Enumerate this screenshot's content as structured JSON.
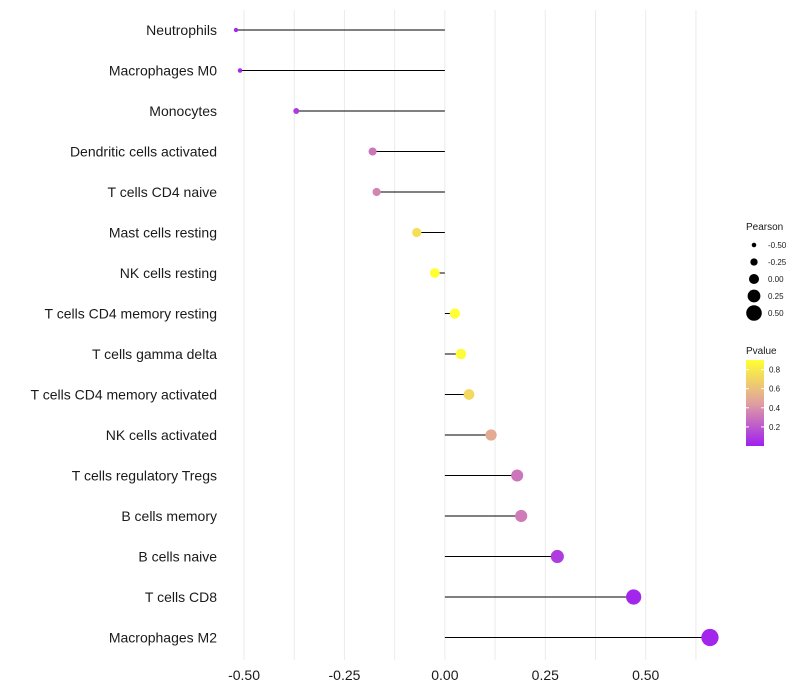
{
  "chart_data": {
    "type": "lollipop",
    "xlim": [
      -0.53,
      0.68
    ],
    "x_ticks": [
      -0.5,
      -0.25,
      0.0,
      0.25,
      0.5
    ],
    "x_tick_labels": [
      "-0.50",
      "-0.25",
      "0.00",
      "0.25",
      "0.50"
    ],
    "baseline": 0.0,
    "grid": true,
    "categories": [
      "Neutrophils",
      "Macrophages M0",
      "Monocytes",
      "Dendritic cells activated",
      "T cells CD4 naive",
      "Mast cells resting",
      "NK cells resting",
      "T cells CD4 memory resting",
      "T cells gamma delta",
      "T cells CD4 memory activated",
      "NK cells activated",
      "T cells regulatory  Tregs",
      "B cells memory",
      "B cells naive",
      "T cells CD8",
      "Macrophages M2"
    ],
    "pearson": [
      -0.52,
      -0.51,
      -0.37,
      -0.18,
      -0.17,
      -0.07,
      -0.025,
      0.025,
      0.04,
      0.06,
      0.115,
      0.18,
      0.19,
      0.28,
      0.47,
      0.66
    ],
    "pvalue": [
      0.02,
      0.02,
      0.1,
      0.3,
      0.35,
      0.75,
      0.9,
      0.9,
      0.88,
      0.72,
      0.5,
      0.3,
      0.32,
      0.1,
      0.02,
      0.02
    ],
    "size_legend": {
      "title": "Pearson",
      "values": [
        -0.5,
        -0.25,
        0.0,
        0.25,
        0.5
      ],
      "labels": [
        "-0.50",
        "-0.25",
        "0.00",
        "0.25",
        "0.50"
      ]
    },
    "color_legend": {
      "title": "Pvalue",
      "range": [
        0.0,
        0.9
      ],
      "ticks": [
        0.2,
        0.4,
        0.6,
        0.8
      ],
      "tick_labels": [
        "0.2",
        "0.4",
        "0.6",
        "0.8"
      ],
      "low_color": "#a020f0",
      "mid_color": "#e0a0a0",
      "high_color": "#ffff33"
    },
    "colors": {
      "stem": "#000000",
      "grid": "#ebebeb"
    }
  }
}
